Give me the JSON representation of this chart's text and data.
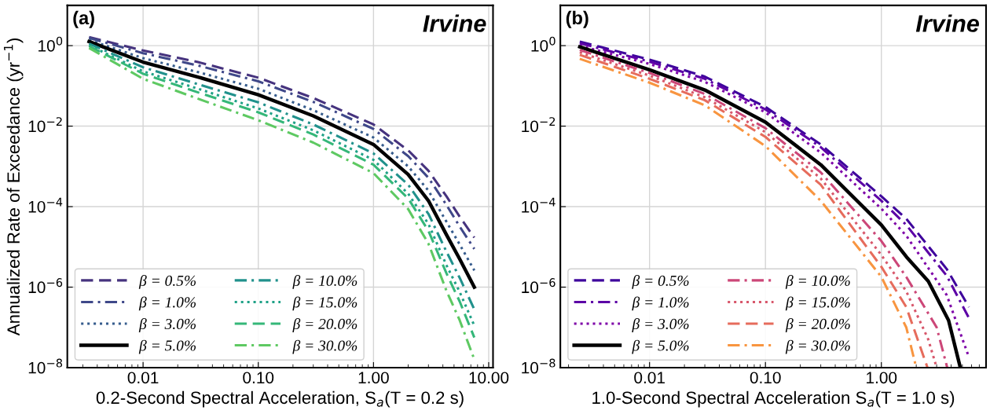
{
  "chart_data": [
    {
      "type": "line",
      "ylabel": "Annualized Rate of Exceedance (yr$^{−1}$)",
      "xlabel": "0.2-Second Spectral Acceleration, S$_{a}$(T = 0.2 s)",
      "annotations": [
        "(a)",
        "Irvine"
      ],
      "log": "xy",
      "grid": true,
      "legend": "bottom left",
      "xlim": [
        0.0022,
        10.9
      ],
      "ylim": [
        1e-08,
        10
      ],
      "xticks": [
        {
          "value": 0.01,
          "label": "0.01"
        },
        {
          "value": 0.1,
          "label": "0.10"
        },
        {
          "value": 1,
          "label": "1.00"
        },
        {
          "value": 10,
          "label": "10.00"
        }
      ],
      "yticks": [
        {
          "value": 1e-08,
          "label": "10$^{−8}$"
        },
        {
          "value": 1e-06,
          "label": "10$^{−6}$"
        },
        {
          "value": 0.0001,
          "label": "10$^{−4}$"
        },
        {
          "value": 0.01,
          "label": "10$^{−2}$"
        },
        {
          "value": 1,
          "label": "10$^{0}$"
        }
      ],
      "x": [
        0.0034,
        0.01,
        0.03,
        0.1,
        0.3,
        1,
        2,
        3,
        4.3,
        5.6,
        7.5
      ],
      "series": [
        {
          "name": "β = 0.5%",
          "color": "#46337e",
          "line_style": "dashed",
          "values": [
            1.62,
            0.76,
            0.39,
            0.16,
            0.05,
            0.011,
            0.0025,
            0.00078,
            0.00018,
            5.6e-05,
            1.7e-05
          ]
        },
        {
          "name": "β = 1.0%",
          "color": "#3f4889",
          "line_style": "dashdot",
          "values": [
            1.55,
            0.65,
            0.32,
            0.13,
            0.04,
            0.0085,
            0.0018,
            0.00052,
            0.00011,
            3.2e-05,
            8.9e-06
          ]
        },
        {
          "name": "β = 3.0%",
          "color": "#365c8d",
          "line_style": "dotted",
          "values": [
            1.38,
            0.49,
            0.22,
            0.085,
            0.025,
            0.0052,
            0.001,
            0.00025,
            4.2e-05,
            1.15e-05,
            2.6e-06
          ]
        },
        {
          "name": "β = 5.0%",
          "color": "#000000",
          "line_style": "solid",
          "values": [
            1.26,
            0.39,
            0.166,
            0.06,
            0.018,
            0.0035,
            0.00063,
            0.00014,
            2e-05,
            5e-06,
            1e-06
          ]
        },
        {
          "name": "β = 10.0%",
          "color": "#21918c",
          "line_style": "dashdot",
          "values": [
            1.12,
            0.29,
            0.11,
            0.039,
            0.011,
            0.0021,
            0.00035,
            6.6e-05,
            7.6e-06,
            1.7e-06,
            2.8e-07
          ]
        },
        {
          "name": "β = 15.0%",
          "color": "#1fa187",
          "line_style": "dotted",
          "values": [
            1.02,
            0.23,
            0.085,
            0.0275,
            0.0079,
            0.00145,
            0.00021,
            3.7e-05,
            3.5e-06,
            7.6e-07,
            1.1e-07
          ]
        },
        {
          "name": "β = 20.0%",
          "color": "#35b779",
          "line_style": "dashed",
          "values": [
            0.98,
            0.2,
            0.069,
            0.022,
            0.0062,
            0.0011,
            0.00016,
            2.5e-05,
            2.2e-06,
            4.4e-07,
            5.6e-08
          ]
        },
        {
          "name": "β = 30.0%",
          "color": "#5ec962",
          "line_style": "dashdot",
          "values": [
            0.87,
            0.15,
            0.048,
            0.014,
            0.0039,
            0.00068,
            8.7e-05,
            1.2e-05,
            8.1e-07,
            1.5e-07,
            1.6e-08
          ]
        }
      ]
    },
    {
      "type": "line",
      "xlabel": "1.0-Second Spectral Acceleration S$_{a}$(T = 1.0 s)",
      "annotations": [
        "(b)",
        "Irvine"
      ],
      "log": "xy",
      "grid": true,
      "legend": "bottom left",
      "xlim": [
        0.0017,
        8
      ],
      "ylim": [
        1e-08,
        10
      ],
      "xticks": [
        {
          "value": 0.01,
          "label": "0.01"
        },
        {
          "value": 0.1,
          "label": "0.10"
        },
        {
          "value": 1,
          "label": "1.00"
        }
      ],
      "yticks": [
        {
          "value": 1e-08,
          "label": "10$^{−8}$"
        },
        {
          "value": 1e-06,
          "label": "10$^{−6}$"
        },
        {
          "value": 0.0001,
          "label": "10$^{−4}$"
        },
        {
          "value": 0.01,
          "label": "10$^{−2}$"
        },
        {
          "value": 1,
          "label": "10$^{0}$"
        }
      ],
      "series": [
        {
          "name": "β = 0.5%",
          "color": "#3e049c",
          "line_style": "dashed",
          "x": [
            0.0025,
            0.01,
            0.03,
            0.1,
            0.3,
            1,
            1.64,
            3.67,
            5.7
          ],
          "values": [
            1.26,
            0.45,
            0.17,
            0.03,
            0.0035,
            0.00018,
            5e-05,
            2.8e-06,
            3.2e-07
          ]
        },
        {
          "name": "β = 1.0%",
          "color": "#5c01a6",
          "line_style": "dashdot",
          "x": [
            0.0025,
            0.01,
            0.03,
            0.1,
            0.3,
            1,
            1.64,
            3.67,
            5.7
          ],
          "values": [
            1.15,
            0.4,
            0.15,
            0.026,
            0.003,
            0.00014,
            3.5e-05,
            1.9e-06,
            1.7e-07
          ]
        },
        {
          "name": "β = 3.0%",
          "color": "#7e03a8",
          "line_style": "dotted",
          "x": [
            0.0025,
            0.01,
            0.03,
            0.1,
            0.3,
            1,
            1.64,
            3.67,
            5.7
          ],
          "values": [
            1.0,
            0.35,
            0.126,
            0.022,
            0.0022,
            8.9e-05,
            1.9e-05,
            6.3e-07,
            1.8e-08
          ]
        },
        {
          "name": "β = 5.0%",
          "color": "#000000",
          "line_style": "solid",
          "x": [
            0.0025,
            0.01,
            0.03,
            0.1,
            0.3,
            1,
            1.65,
            2.54,
            3.8,
            4.8
          ],
          "values": [
            0.93,
            0.25,
            0.079,
            0.0126,
            0.0011,
            3.5e-05,
            5.6e-06,
            1.4e-06,
            1.5e-07,
            1e-08
          ]
        },
        {
          "name": "β = 10.0%",
          "color": "#cc4778",
          "line_style": "dashdot",
          "x": [
            0.0025,
            0.01,
            0.03,
            0.1,
            0.3,
            1,
            1.64,
            3.0,
            3.7
          ],
          "values": [
            0.78,
            0.21,
            0.063,
            0.0089,
            0.00071,
            1.4e-05,
            1.8e-06,
            1e-07,
            1e-08
          ]
        },
        {
          "name": "β = 15.0%",
          "color": "#d8576b",
          "line_style": "dotted",
          "x": [
            0.0025,
            0.01,
            0.03,
            0.1,
            0.3,
            1,
            1.64,
            2.54,
            3.0
          ],
          "values": [
            0.68,
            0.18,
            0.052,
            0.0071,
            0.0005,
            6.3e-06,
            7.9e-07,
            5e-08,
            1e-08
          ]
        },
        {
          "name": "β = 20.0%",
          "color": "#e66c5c",
          "line_style": "dashed",
          "x": [
            0.0025,
            0.01,
            0.03,
            0.1,
            0.3,
            1,
            1.64,
            2.0,
            2.5
          ],
          "values": [
            0.59,
            0.15,
            0.044,
            0.0054,
            0.00035,
            3.2e-06,
            3.2e-07,
            6.3e-08,
            1e-08
          ]
        },
        {
          "name": "β = 30.0%",
          "color": "#f89540",
          "line_style": "dashdot",
          "x": [
            0.0025,
            0.01,
            0.03,
            0.1,
            0.3,
            1,
            1.64,
            2.0
          ],
          "values": [
            0.47,
            0.12,
            0.033,
            0.0032,
            0.00014,
            1.8e-06,
            1e-07,
            1e-08
          ]
        }
      ]
    }
  ]
}
